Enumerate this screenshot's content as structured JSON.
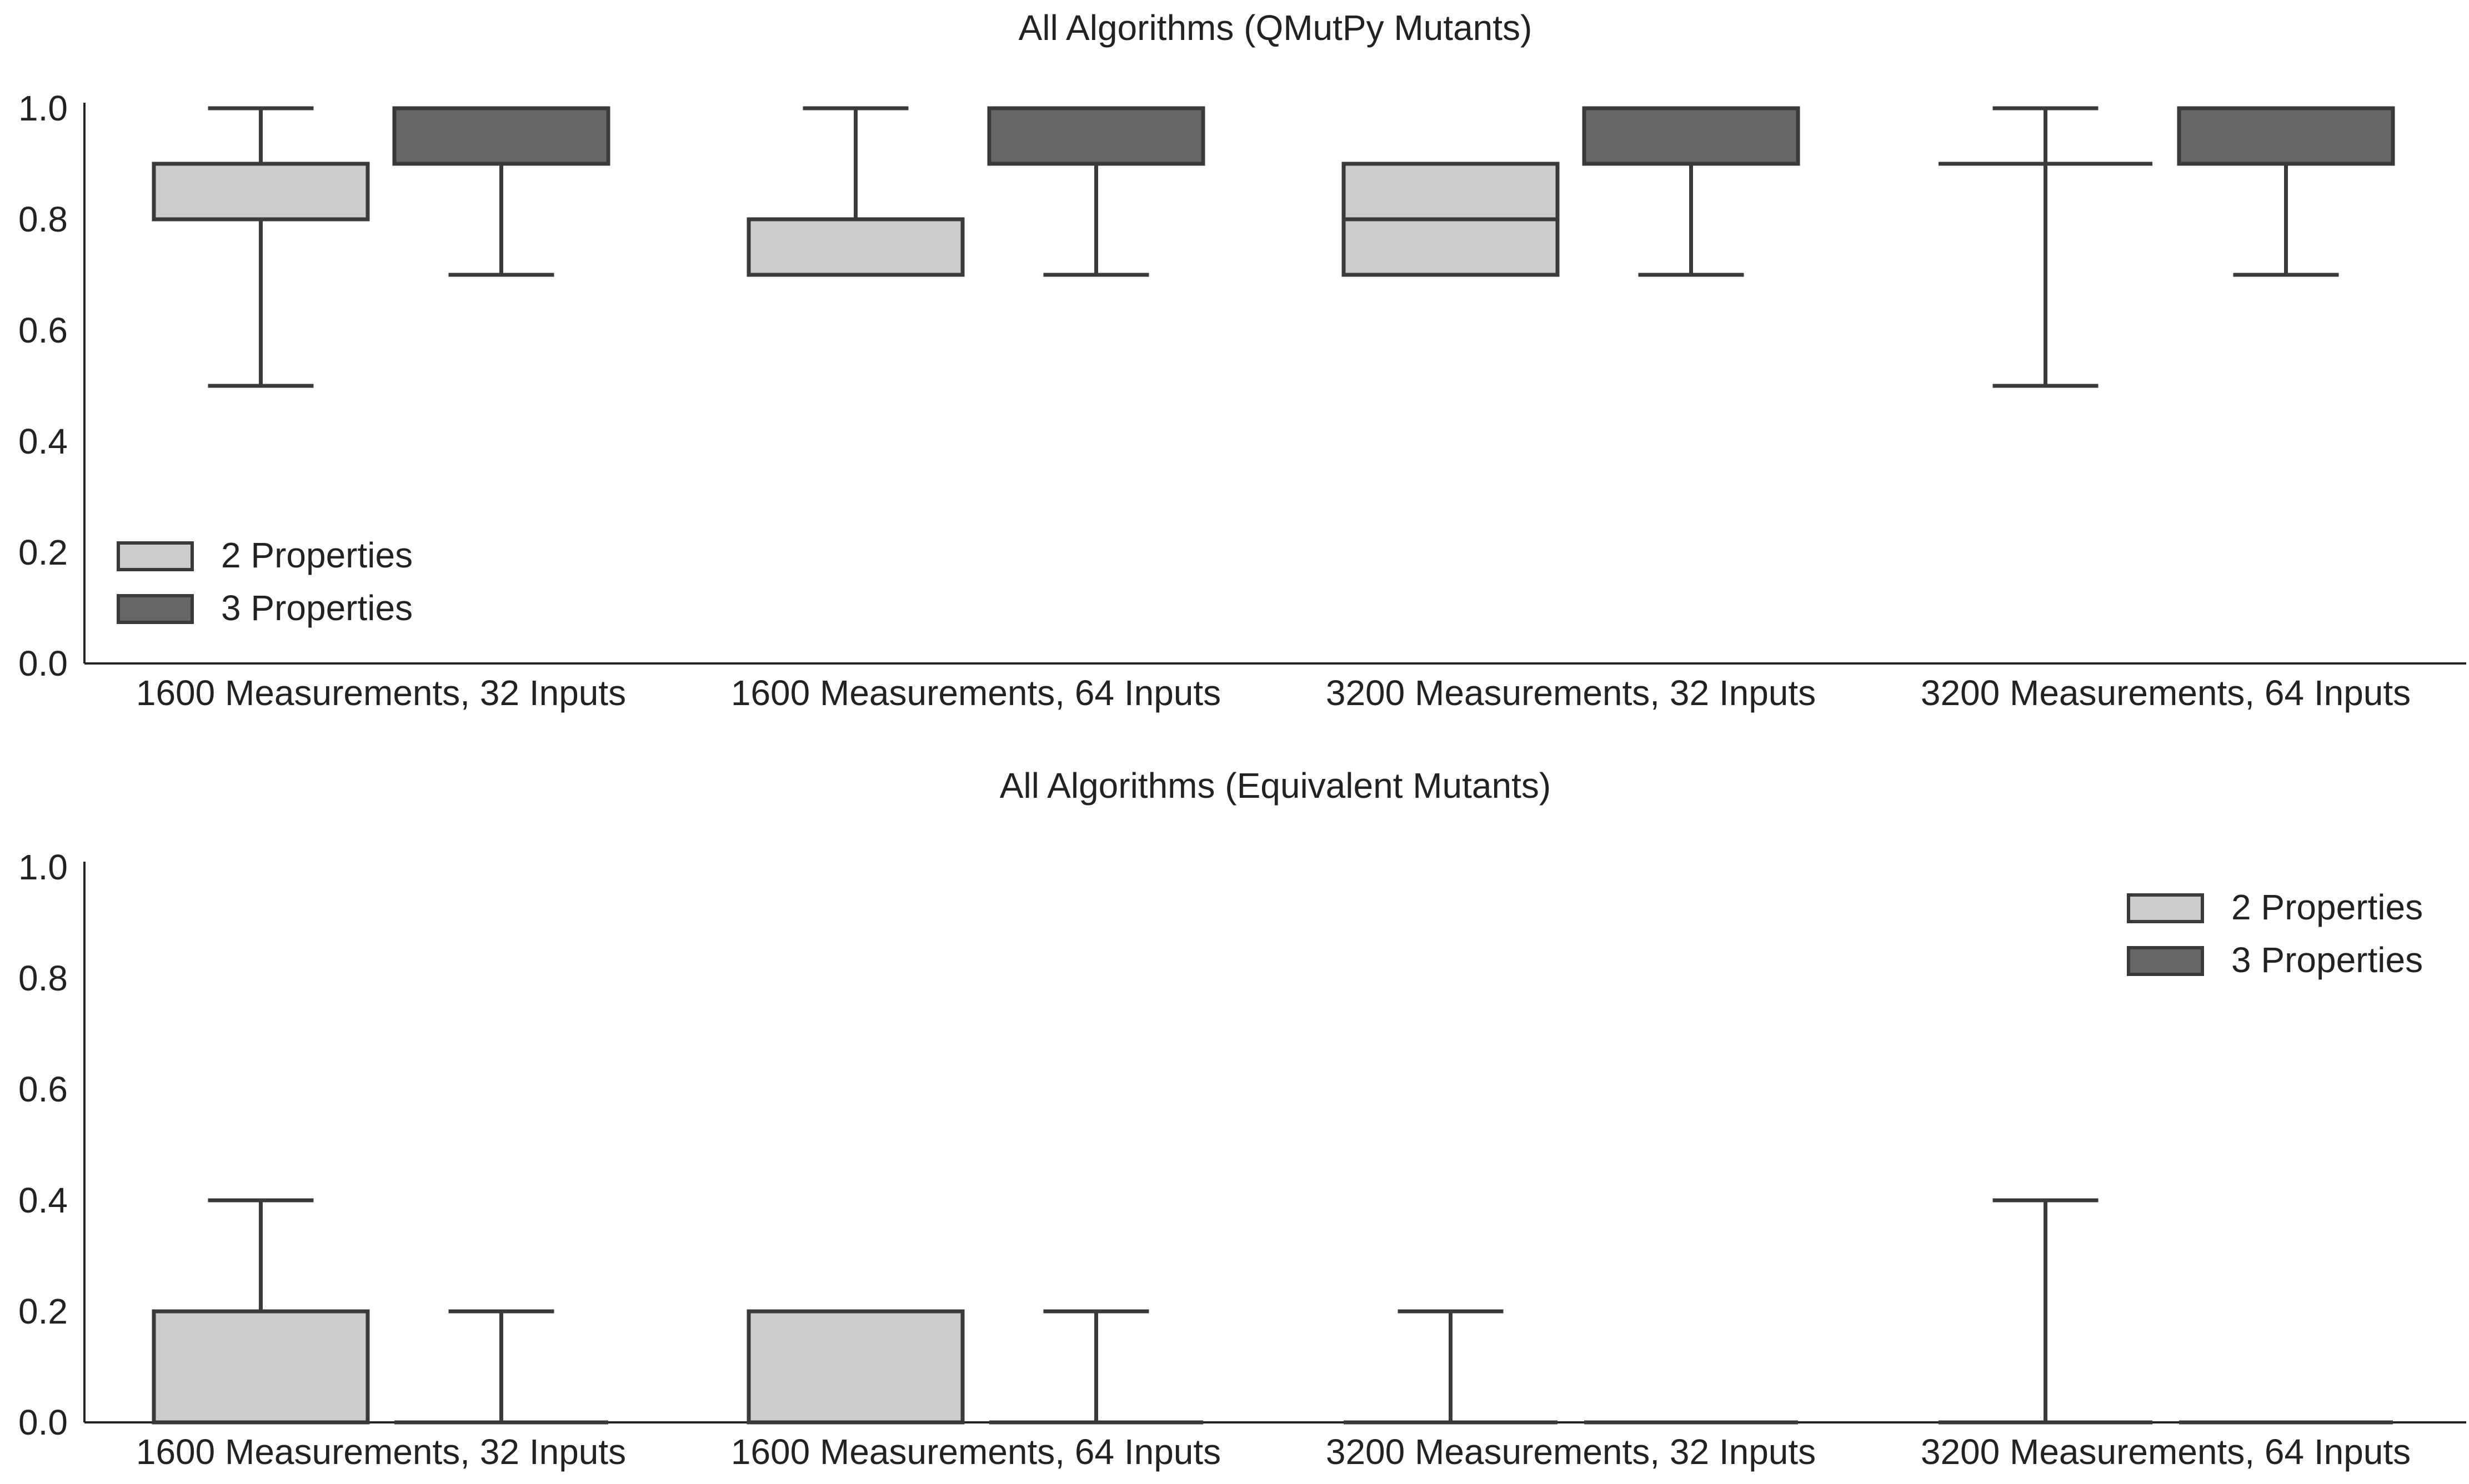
{
  "colors": {
    "two_properties": "#cccccc",
    "three_properties": "#666666",
    "outline": "#3a3a3a",
    "axis": "#222222"
  },
  "chart_data": [
    {
      "type": "box",
      "title": "All Algorithms (QMutPy Mutants)",
      "xlabel": "",
      "ylabel": "",
      "ylim": [
        0,
        1.0
      ],
      "yticks": [
        "0.0",
        "0.2",
        "0.4",
        "0.6",
        "0.8",
        "1.0"
      ],
      "grid": false,
      "legend_position": "lower-left",
      "categories": [
        "1600 Measurements, 32 Inputs",
        "1600 Measurements, 64 Inputs",
        "3200 Measurements, 32 Inputs",
        "3200 Measurements, 64 Inputs"
      ],
      "series": [
        {
          "name": "2 Properties",
          "boxes": [
            {
              "whisker_low": 0.5,
              "q1": 0.8,
              "median": 0.8,
              "q3": 0.9,
              "whisker_high": 1.0
            },
            {
              "whisker_low": 0.7,
              "q1": 0.7,
              "median": 0.7,
              "q3": 0.8,
              "whisker_high": 1.0
            },
            {
              "whisker_low": 0.7,
              "q1": 0.7,
              "median": 0.8,
              "q3": 0.9,
              "whisker_high": 0.9
            },
            {
              "whisker_low": 0.5,
              "q1": 0.9,
              "median": 0.9,
              "q3": 0.9,
              "whisker_high": 1.0
            }
          ]
        },
        {
          "name": "3 Properties",
          "boxes": [
            {
              "whisker_low": 0.7,
              "q1": 0.9,
              "median": 1.0,
              "q3": 1.0,
              "whisker_high": 1.0
            },
            {
              "whisker_low": 0.7,
              "q1": 0.9,
              "median": 1.0,
              "q3": 1.0,
              "whisker_high": 1.0
            },
            {
              "whisker_low": 0.7,
              "q1": 0.9,
              "median": 1.0,
              "q3": 1.0,
              "whisker_high": 1.0
            },
            {
              "whisker_low": 0.7,
              "q1": 0.9,
              "median": 1.0,
              "q3": 1.0,
              "whisker_high": 1.0
            }
          ]
        }
      ]
    },
    {
      "type": "box",
      "title": "All Algorithms (Equivalent Mutants)",
      "xlabel": "",
      "ylabel": "",
      "ylim": [
        0,
        1.0
      ],
      "yticks": [
        "0.0",
        "0.2",
        "0.4",
        "0.6",
        "0.8",
        "1.0"
      ],
      "grid": false,
      "legend_position": "upper-right",
      "categories": [
        "1600 Measurements, 32 Inputs",
        "1600 Measurements, 64 Inputs",
        "3200 Measurements, 32 Inputs",
        "3200 Measurements, 64 Inputs"
      ],
      "series": [
        {
          "name": "2 Properties",
          "boxes": [
            {
              "whisker_low": 0.0,
              "q1": 0.0,
              "median": 0.0,
              "q3": 0.2,
              "whisker_high": 0.4
            },
            {
              "whisker_low": 0.0,
              "q1": 0.0,
              "median": 0.0,
              "q3": 0.2,
              "whisker_high": 0.2
            },
            {
              "whisker_low": 0.0,
              "q1": 0.0,
              "median": 0.0,
              "q3": 0.0,
              "whisker_high": 0.2
            },
            {
              "whisker_low": 0.0,
              "q1": 0.0,
              "median": 0.0,
              "q3": 0.0,
              "whisker_high": 0.4
            }
          ]
        },
        {
          "name": "3 Properties",
          "boxes": [
            {
              "whisker_low": 0.0,
              "q1": 0.0,
              "median": 0.0,
              "q3": 0.0,
              "whisker_high": 0.2
            },
            {
              "whisker_low": 0.0,
              "q1": 0.0,
              "median": 0.0,
              "q3": 0.0,
              "whisker_high": 0.2
            },
            {
              "whisker_low": 0.0,
              "q1": 0.0,
              "median": 0.0,
              "q3": 0.0,
              "whisker_high": 0.0
            },
            {
              "whisker_low": 0.0,
              "q1": 0.0,
              "median": 0.0,
              "q3": 0.0,
              "whisker_high": 0.0
            }
          ]
        }
      ]
    }
  ]
}
